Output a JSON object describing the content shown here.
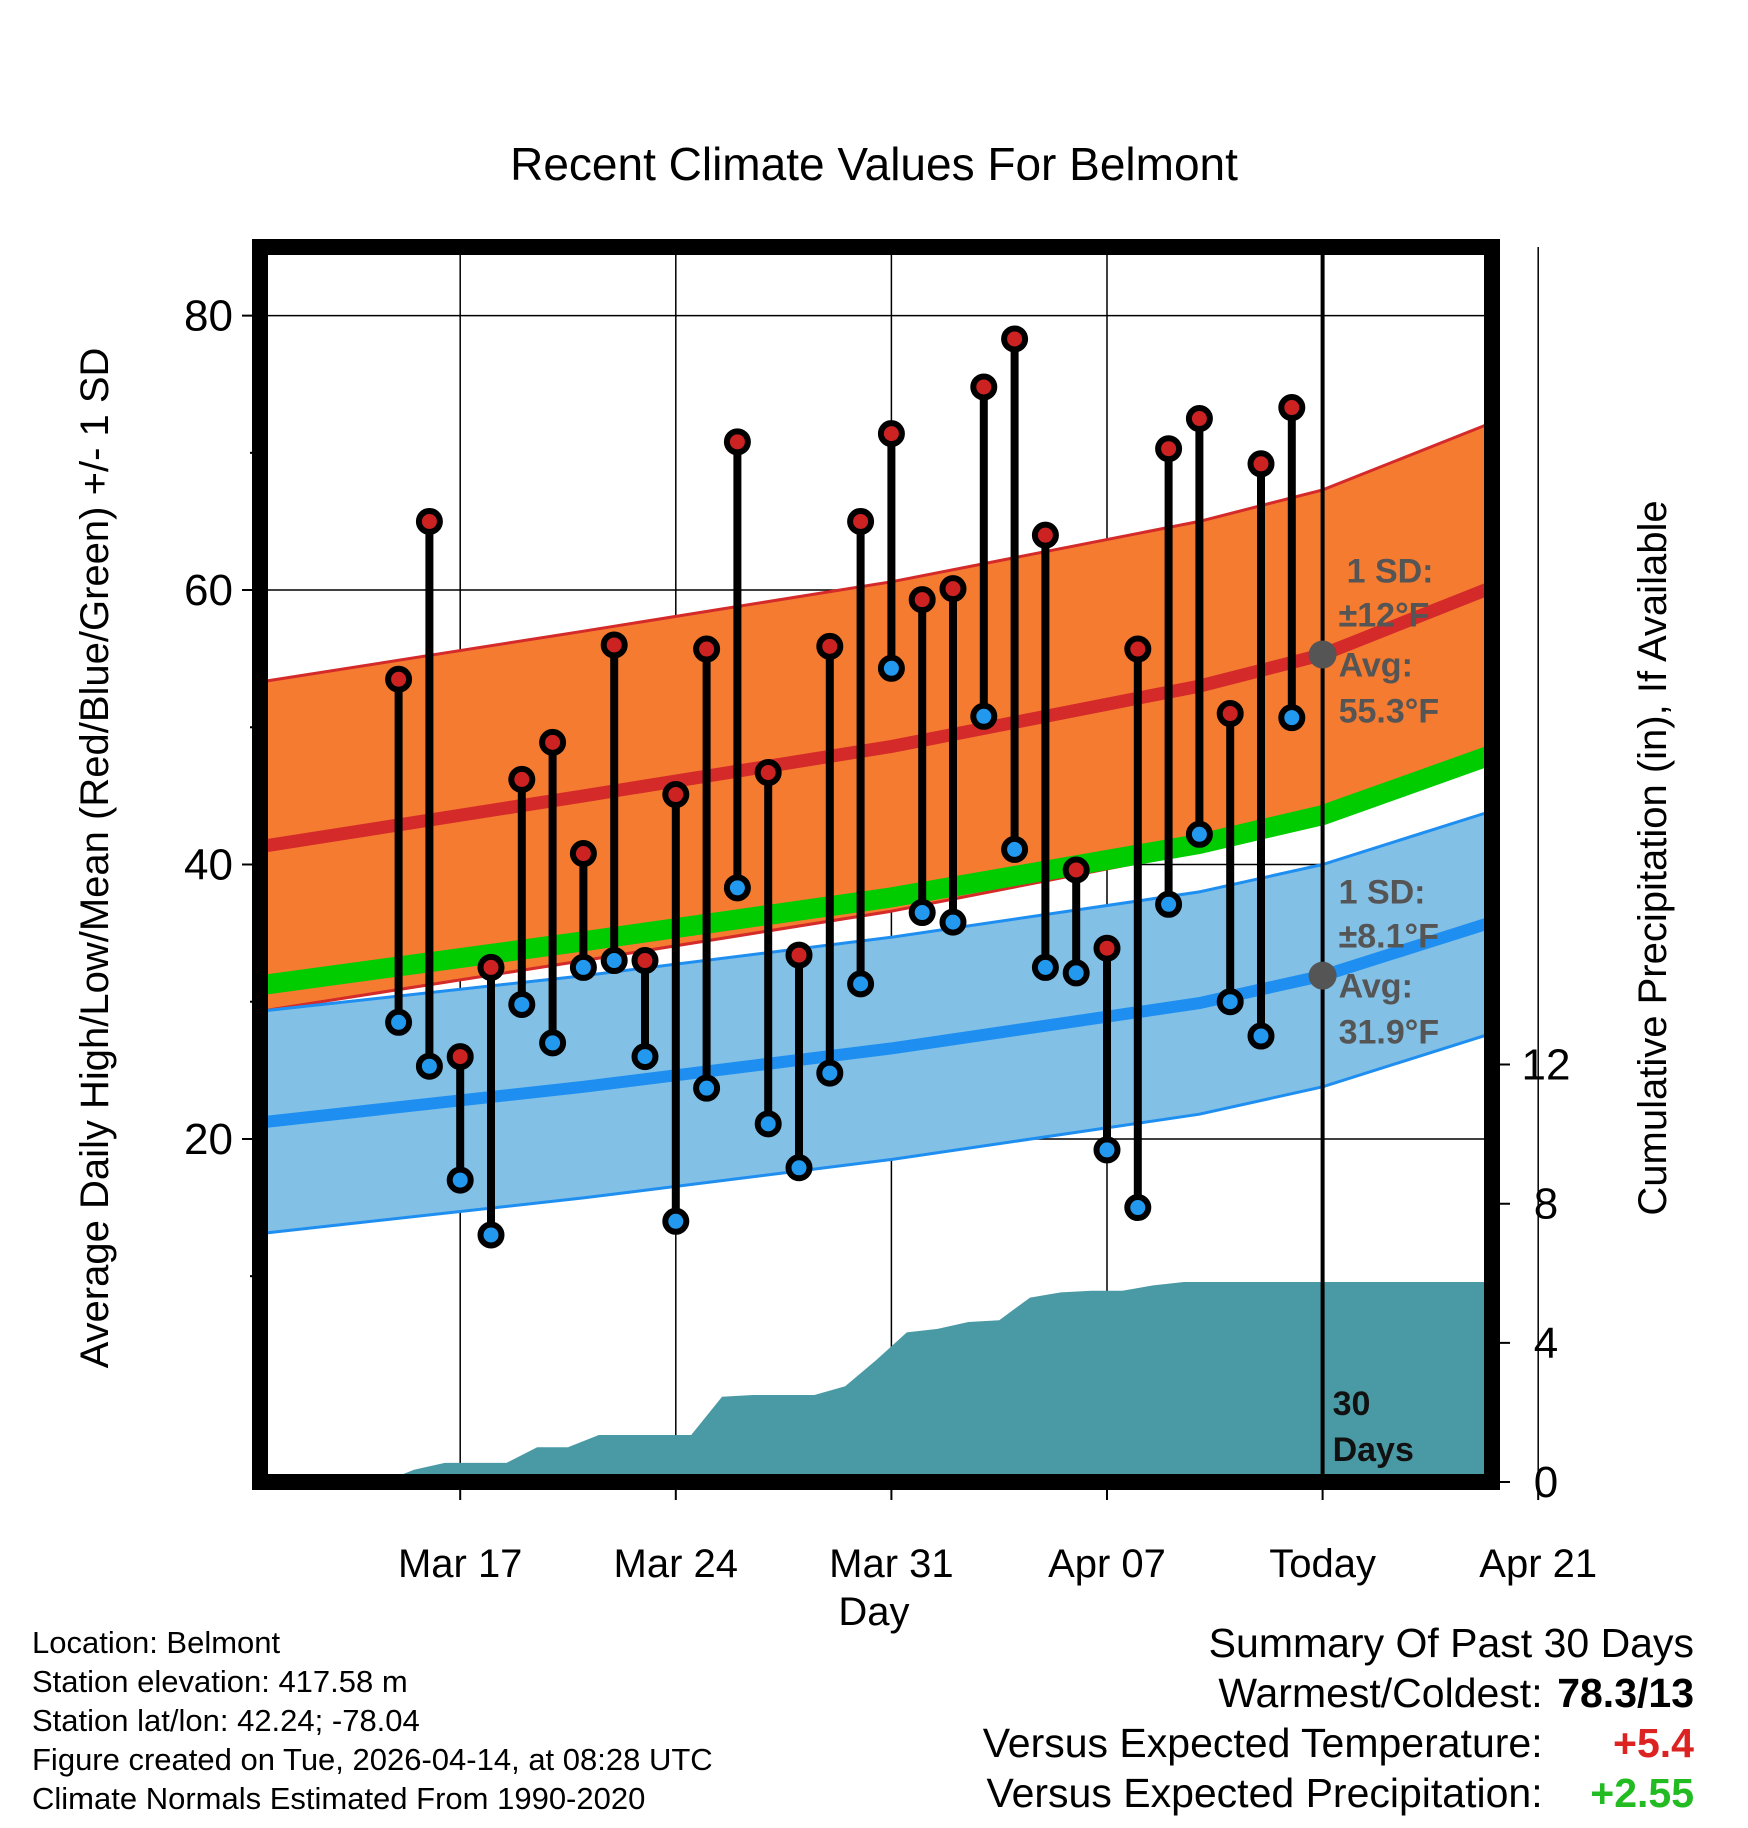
{
  "title": "Recent Climate Values For Belmont",
  "xlabel": "Day",
  "ylabel_left": "Average Daily High/Low/Mean (Red/Blue/Green) +/- 1 SD",
  "ylabel_right": "Cumulative Precipitation (in), If Available",
  "today_label": "30\nDays",
  "colors": {
    "high_band": "#f47b30",
    "high_line": "#d42a2a",
    "low_band": "#82c0e6",
    "low_line": "#1e8ff0",
    "mean_line": "#00cc00",
    "precip": "#4a9aa5",
    "high_dot": "#cc2222",
    "low_dot": "#2299ee",
    "annotation": "#555555",
    "warm": "#dd2222",
    "wet": "#22bb22"
  },
  "chart_data": {
    "type": "line",
    "x_range_days": [
      -34.5,
      5.5
    ],
    "ylim_left": [
      -5,
      85
    ],
    "ylim_right": [
      0,
      35.5
    ],
    "left_ticks": [
      20,
      40,
      60,
      80
    ],
    "left_minor_ticks": [
      10,
      30,
      50,
      70
    ],
    "right_ticks": [
      0,
      4,
      8,
      12
    ],
    "x_ticks": [
      {
        "day": -28,
        "label": "Mar 17"
      },
      {
        "day": -21,
        "label": "Mar 24"
      },
      {
        "day": -14,
        "label": "Mar 31"
      },
      {
        "day": -7,
        "label": "Apr 07"
      },
      {
        "day": 0,
        "label": "Today"
      },
      {
        "day": 7,
        "label": "Apr 21"
      }
    ],
    "today_day": 0,
    "normals": {
      "days": [
        -34.5,
        -24,
        -14,
        -4,
        0,
        5.5
      ],
      "high_avg": [
        41.3,
        45.0,
        48.6,
        53.0,
        55.3,
        60.2
      ],
      "high_sd": [
        12,
        12,
        12,
        12,
        12,
        12
      ],
      "low_avg": [
        21.2,
        23.8,
        26.6,
        29.9,
        31.9,
        35.8
      ],
      "low_sd": [
        8.1,
        8.1,
        8.1,
        8.1,
        8.1,
        8.1
      ],
      "mean_avg": [
        31.2,
        34.4,
        37.6,
        41.5,
        43.6,
        48.0
      ]
    },
    "observations": [
      {
        "day": -30,
        "high": 53.5,
        "low": 28.5
      },
      {
        "day": -29,
        "high": 65.0,
        "low": 25.3
      },
      {
        "day": -28,
        "high": 26.0,
        "low": 17.0
      },
      {
        "day": -27,
        "high": 32.5,
        "low": 13.0
      },
      {
        "day": -26,
        "high": 46.2,
        "low": 29.8
      },
      {
        "day": -25,
        "high": 48.9,
        "low": 27.0
      },
      {
        "day": -24,
        "high": 40.8,
        "low": 32.5
      },
      {
        "day": -23,
        "high": 56.0,
        "low": 33.0
      },
      {
        "day": -22,
        "high": 33.0,
        "low": 26.0
      },
      {
        "day": -21,
        "high": 45.1,
        "low": 14.0
      },
      {
        "day": -20,
        "high": 55.7,
        "low": 23.7
      },
      {
        "day": -19,
        "high": 70.8,
        "low": 38.3
      },
      {
        "day": -18,
        "high": 46.7,
        "low": 21.1
      },
      {
        "day": -17,
        "high": 33.4,
        "low": 17.9
      },
      {
        "day": -16,
        "high": 55.9,
        "low": 24.8
      },
      {
        "day": -15,
        "high": 65.0,
        "low": 31.3
      },
      {
        "day": -14,
        "high": 71.4,
        "low": 54.3
      },
      {
        "day": -13,
        "high": 59.3,
        "low": 36.5
      },
      {
        "day": -12,
        "high": 60.1,
        "low": 35.8
      },
      {
        "day": -11,
        "high": 74.8,
        "low": 50.8
      },
      {
        "day": -10,
        "high": 78.3,
        "low": 41.1
      },
      {
        "day": -9,
        "high": 64.0,
        "low": 32.5
      },
      {
        "day": -8,
        "high": 39.6,
        "low": 32.1
      },
      {
        "day": -7,
        "high": 33.9,
        "low": 19.2
      },
      {
        "day": -6,
        "high": 55.7,
        "low": 15.0
      },
      {
        "day": -5,
        "high": 70.3,
        "low": 37.1
      },
      {
        "day": -4,
        "high": 72.5,
        "low": 42.2
      },
      {
        "day": -3,
        "high": 51.0,
        "low": 30.0
      },
      {
        "day": -2,
        "high": 69.2,
        "low": 27.5
      },
      {
        "day": -1,
        "high": 73.3,
        "low": 50.7
      }
    ],
    "cumulative_precip": {
      "days": [
        -34.5,
        -30.5,
        -29.5,
        -28.5,
        -27.5,
        -26.5,
        -25.5,
        -24.5,
        -23.5,
        -22.5,
        -21.5,
        -20.5,
        -19.5,
        -18.5,
        -17.5,
        -16.5,
        -15.5,
        -14.5,
        -13.5,
        -12.5,
        -11.5,
        -10.5,
        -9.5,
        -8.5,
        -7.5,
        -6.5,
        -5.5,
        -4.5,
        5.5
      ],
      "values": [
        0,
        0,
        0.35,
        0.55,
        0.55,
        0.55,
        1.0,
        1.0,
        1.35,
        1.35,
        1.35,
        1.35,
        2.45,
        2.5,
        2.5,
        2.5,
        2.75,
        3.5,
        4.3,
        4.4,
        4.6,
        4.65,
        5.3,
        5.45,
        5.5,
        5.5,
        5.65,
        5.75,
        5.75
      ]
    },
    "annotations": {
      "high_sd": "1 SD:",
      "high_sd_value": "±12°F",
      "high_avg_label": "Avg:",
      "high_avg_value": "55.3°F",
      "low_sd": "1 SD:",
      "low_sd_value": "±8.1°F",
      "low_avg_label": "Avg:",
      "low_avg_value": "31.9°F"
    }
  },
  "footer": {
    "location": "Location: Belmont",
    "elevation": "Station elevation: 417.58 m",
    "latlon": "Station lat/lon: 42.24; -78.04",
    "created": "Figure created on Tue, 2026-04-14, at 08:28 UTC",
    "normals": "Climate Normals Estimated From 1990-2020"
  },
  "summary": {
    "heading": "Summary Of Past 30 Days",
    "warm_cold_label": "Warmest/Coldest:",
    "warm_cold_value": "78.3/13",
    "temp_label": "Versus Expected Temperature:",
    "temp_value": "+5.4",
    "precip_label": "Versus Expected Precipitation:",
    "precip_value": "+2.55"
  }
}
